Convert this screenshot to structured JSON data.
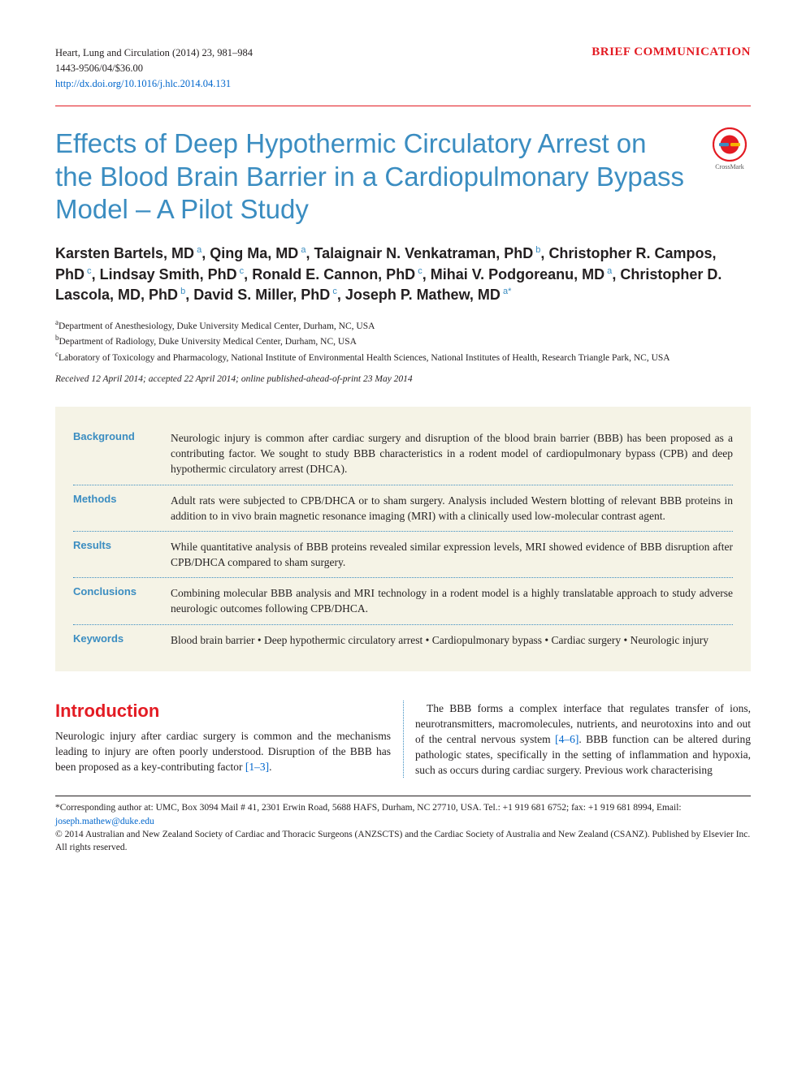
{
  "header": {
    "journal_line": "Heart, Lung and Circulation (2014) 23, 981–984",
    "issn_line": "1443-9506/04/$36.00",
    "doi_url": "http://dx.doi.org/10.1016/j.hlc.2014.04.131",
    "article_type": "BRIEF COMMUNICATION",
    "colors": {
      "accent_red": "#e31b23",
      "accent_blue": "#3b8dc1",
      "link_blue": "#0066cc",
      "abstract_bg": "#f5f3e6"
    }
  },
  "title": "Effects of Deep Hypothermic Circulatory Arrest on the Blood Brain Barrier in a Cardiopulmonary Bypass Model – A Pilot Study",
  "crossmark_label": "CrossMark",
  "authors": [
    {
      "name": "Karsten Bartels, MD",
      "aff": "a"
    },
    {
      "name": "Qing Ma, MD",
      "aff": "a"
    },
    {
      "name": "Talaignair N. Venkatraman, PhD",
      "aff": "b"
    },
    {
      "name": "Christopher R. Campos, PhD",
      "aff": "c"
    },
    {
      "name": "Lindsay Smith, PhD",
      "aff": "c"
    },
    {
      "name": "Ronald E. Cannon, PhD",
      "aff": "c"
    },
    {
      "name": "Mihai V. Podgoreanu, MD",
      "aff": "a"
    },
    {
      "name": "Christopher D. Lascola, MD, PhD",
      "aff": "b"
    },
    {
      "name": "David S. Miller, PhD",
      "aff": "c"
    },
    {
      "name": "Joseph P. Mathew, MD",
      "aff": "a*"
    }
  ],
  "affiliations": {
    "a": "Department of Anesthesiology, Duke University Medical Center, Durham, NC, USA",
    "b": "Department of Radiology, Duke University Medical Center, Durham, NC, USA",
    "c": "Laboratory of Toxicology and Pharmacology, National Institute of Environmental Health Sciences, National Institutes of Health, Research Triangle Park, NC, USA"
  },
  "history": "Received 12 April 2014; accepted 22 April 2014; online published-ahead-of-print 23 May 2014",
  "abstract": {
    "Background": "Neurologic injury is common after cardiac surgery and disruption of the blood brain barrier (BBB) has been proposed as a contributing factor. We sought to study BBB characteristics in a rodent model of cardiopulmonary bypass (CPB) and deep hypothermic circulatory arrest (DHCA).",
    "Methods": "Adult rats were subjected to CPB/DHCA or to sham surgery. Analysis included Western blotting of relevant BBB proteins in addition to in vivo brain magnetic resonance imaging (MRI) with a clinically used low-molecular contrast agent.",
    "Results": "While quantitative analysis of BBB proteins revealed similar expression levels, MRI showed evidence of BBB disruption after CPB/DHCA compared to sham surgery.",
    "Conclusions": "Combining molecular BBB analysis and MRI technology in a rodent model is a highly translatable approach to study adverse neurologic outcomes following CPB/DHCA.",
    "Keywords": "Blood brain barrier  •  Deep hypothermic circulatory arrest  •  Cardiopulmonary bypass  •  Cardiac surgery  •  Neurologic injury"
  },
  "intro": {
    "heading": "Introduction",
    "p1_a": "Neurologic injury after cardiac surgery is common and the mechanisms leading to injury are often poorly understood. Disruption of the BBB has been proposed as a key-contributing factor ",
    "p1_cite": "[1–3]",
    "p1_b": ".",
    "p2_a": "The BBB forms a complex interface that regulates transfer of ions, neurotransmitters, macromolecules, nutrients, and neurotoxins into and out of the central nervous system ",
    "p2_cite": "[4–6]",
    "p2_b": ". BBB function can be altered during pathologic states, specifically in the setting of inflammation and hypoxia, such as occurs during cardiac surgery. Previous work characterising"
  },
  "footer": {
    "corr": "*Corresponding author at: UMC, Box 3094 Mail # 41, 2301 Erwin Road, 5688 HAFS, Durham, NC 27710, USA. Tel.: +1 919 681 6752; fax: +1 919 681 8994, Email: ",
    "email": "joseph.mathew@duke.edu",
    "copyright": "© 2014 Australian and New Zealand Society of Cardiac and Thoracic Surgeons (ANZSCTS) and the Cardiac Society of Australia and New Zealand (CSANZ). Published by Elsevier Inc. All rights reserved."
  }
}
